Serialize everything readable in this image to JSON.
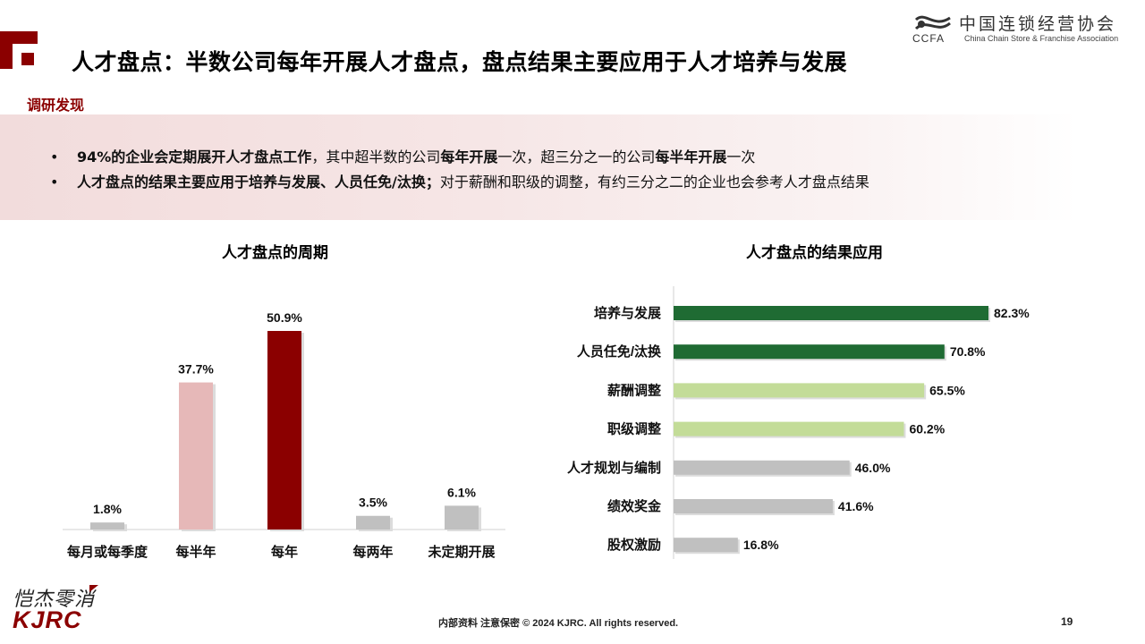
{
  "page": {
    "title": "人才盘点：半数公司每年开展人才盘点，盘点结果主要应用于人才培养与发展",
    "section_label": "调研发现",
    "findings": [
      {
        "bold": "94%的企业会定期展开人才盘点工作",
        "rest1": "，其中超半数的公司",
        "bold2": "每年开展",
        "rest2": "一次，超三分之一的公司",
        "bold3": "每半年开展",
        "rest3": "一次"
      },
      {
        "bold": "人才盘点的结果主要应用于培养与发展、人员任免/汰换；",
        "rest1": "对于薪酬和职级的调整，有约三分之二的企业也会参考人才盘点结果"
      }
    ],
    "bullet": "•",
    "footer": "内部资料 注意保密  © 2024 KJRC. All rights reserved.",
    "page_number": "19"
  },
  "logo": {
    "cn": "中国连锁经营协会",
    "en": "China Chain Store & Franchise Association",
    "abbr": "CCFA"
  },
  "brand": {
    "script": "恺杰零消",
    "name": "KJRC"
  },
  "colors": {
    "accent": "#8b0000",
    "bar_pink": "#e6b8b8",
    "bar_gray": "#c0c0c0",
    "bar_dark_green": "#1f6b33",
    "bar_light_green": "#c3dc98"
  },
  "chart_data": [
    {
      "type": "bar",
      "title": "人才盘点的周期",
      "categories": [
        "每月或每季度",
        "每半年",
        "每年",
        "每两年",
        "未定期开展"
      ],
      "values": [
        1.8,
        37.7,
        50.9,
        3.5,
        6.1
      ],
      "value_labels": [
        "1.8%",
        "37.7%",
        "50.9%",
        "3.5%",
        "6.1%"
      ],
      "unit": "%",
      "colors": [
        "#c0c0c0",
        "#e6b8b8",
        "#8b0000",
        "#c0c0c0",
        "#c0c0c0"
      ],
      "grid": false
    },
    {
      "type": "bar",
      "orientation": "horizontal",
      "title": "人才盘点的结果应用",
      "categories": [
        "培养与发展",
        "人员任免/汰换",
        "薪酬调整",
        "职级调整",
        "人才规划与编制",
        "绩效奖金",
        "股权激励"
      ],
      "values": [
        82.3,
        70.8,
        65.5,
        60.2,
        46.0,
        41.6,
        16.8
      ],
      "value_labels": [
        "82.3%",
        "70.8%",
        "65.5%",
        "60.2%",
        "46.0%",
        "41.6%",
        "16.8%"
      ],
      "unit": "%",
      "colors": [
        "#1f6b33",
        "#1f6b33",
        "#c3dc98",
        "#c3dc98",
        "#c0c0c0",
        "#c0c0c0",
        "#c0c0c0"
      ],
      "grid": false
    }
  ]
}
